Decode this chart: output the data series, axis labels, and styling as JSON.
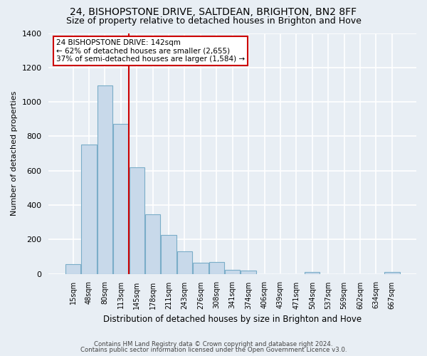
{
  "title": "24, BISHOPSTONE DRIVE, SALTDEAN, BRIGHTON, BN2 8FF",
  "subtitle": "Size of property relative to detached houses in Brighton and Hove",
  "xlabel": "Distribution of detached houses by size in Brighton and Hove",
  "ylabel": "Number of detached properties",
  "footnote1": "Contains HM Land Registry data © Crown copyright and database right 2024.",
  "footnote2": "Contains public sector information licensed under the Open Government Licence v3.0.",
  "bar_labels": [
    "15sqm",
    "48sqm",
    "80sqm",
    "113sqm",
    "145sqm",
    "178sqm",
    "211sqm",
    "243sqm",
    "276sqm",
    "308sqm",
    "341sqm",
    "374sqm",
    "406sqm",
    "439sqm",
    "471sqm",
    "504sqm",
    "537sqm",
    "569sqm",
    "602sqm",
    "634sqm",
    "667sqm"
  ],
  "bar_values": [
    55,
    750,
    1095,
    870,
    620,
    345,
    228,
    130,
    65,
    70,
    25,
    18,
    0,
    0,
    0,
    10,
    0,
    0,
    0,
    0,
    10
  ],
  "bar_color": "#c8d9ea",
  "bar_edge_color": "#7aadc8",
  "vline_color": "#cc0000",
  "annotation_line1": "24 BISHOPSTONE DRIVE: 142sqm",
  "annotation_line2": "← 62% of detached houses are smaller (2,655)",
  "annotation_line3": "37% of semi-detached houses are larger (1,584) →",
  "annotation_box_facecolor": "#ffffff",
  "annotation_box_edgecolor": "#cc0000",
  "ylim": [
    0,
    1400
  ],
  "yticks": [
    0,
    200,
    400,
    600,
    800,
    1000,
    1200,
    1400
  ],
  "background_color": "#e8eef4",
  "plot_background": "#e8eef4",
  "grid_color": "#ffffff",
  "title_fontsize": 10,
  "subtitle_fontsize": 9
}
